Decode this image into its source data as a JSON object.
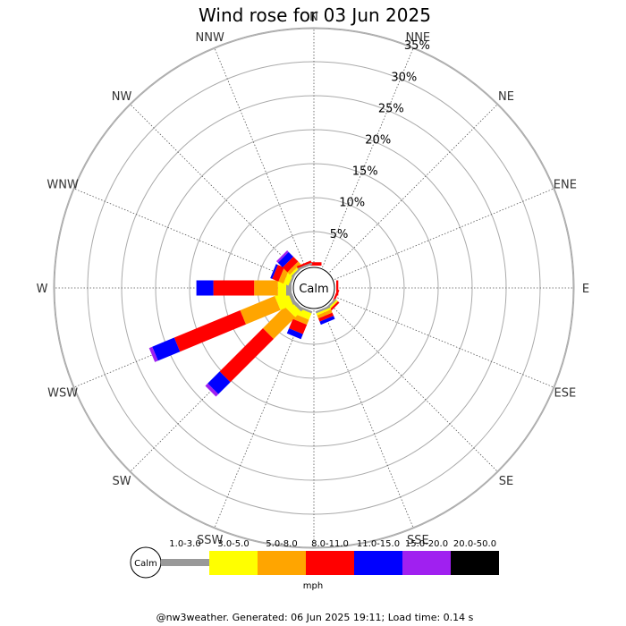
{
  "chart_data": {
    "type": "windrose",
    "title": "Wind rose for 03 Jun 2025",
    "calm_label": "Calm",
    "directions": [
      "N",
      "NNE",
      "NE",
      "ENE",
      "E",
      "ESE",
      "SE",
      "SSE",
      "S",
      "SSW",
      "SW",
      "WSW",
      "W",
      "WNW",
      "NW",
      "NNW"
    ],
    "radial_ticks": [
      "5%",
      "10%",
      "15%",
      "20%",
      "25%",
      "30%",
      "35%"
    ],
    "radial_max": 35,
    "unit": "mph",
    "speed_bins": [
      {
        "label": "1.0-3.0",
        "color": "#999999"
      },
      {
        "label": "3.0-5.0",
        "color": "#ffff00"
      },
      {
        "label": "5.0-8.0",
        "color": "#ffa500"
      },
      {
        "label": "8.0-11.0",
        "color": "#ff0000"
      },
      {
        "label": "11.0-15.0",
        "color": "#0000ff"
      },
      {
        "label": "15.0-20.0",
        "color": "#a020f0"
      },
      {
        "label": "20.0-50.0",
        "color": "#000000"
      }
    ],
    "sectors": {
      "N": [
        0.0,
        0.0,
        0.0,
        0.5,
        0.0,
        0.0,
        0.0
      ],
      "NNE": [
        0.0,
        0.0,
        0.0,
        0.0,
        0.0,
        0.0,
        0.0
      ],
      "NE": [
        0.0,
        0.0,
        0.0,
        0.0,
        0.0,
        0.0,
        0.0
      ],
      "ENE": [
        0.0,
        0.0,
        0.0,
        0.0,
        0.0,
        0.0,
        0.0
      ],
      "E": [
        0.0,
        0.0,
        0.0,
        0.3,
        0.0,
        0.0,
        0.0
      ],
      "ESE": [
        0.0,
        0.0,
        0.0,
        0.3,
        0.0,
        0.0,
        0.0
      ],
      "SE": [
        0.3,
        0.3,
        0.0,
        0.3,
        0.0,
        0.0,
        0.0
      ],
      "SSE": [
        0.3,
        0.3,
        0.5,
        0.5,
        0.5,
        0.0,
        0.0
      ],
      "S": [
        0.0,
        0.0,
        0.0,
        0.0,
        0.0,
        0.0,
        0.0
      ],
      "SSW": [
        0.3,
        1.0,
        0.8,
        1.5,
        0.8,
        0.0,
        0.0
      ],
      "SW": [
        0.5,
        1.2,
        4.5,
        9.0,
        2.5,
        0.5,
        0.0
      ],
      "WSW": [
        0.5,
        2.0,
        5.5,
        10.5,
        3.5,
        0.5,
        0.0
      ],
      "W": [
        0.8,
        1.2,
        3.5,
        6.0,
        2.5,
        0.0,
        0.0
      ],
      "WNW": [
        0.3,
        0.8,
        0.8,
        1.0,
        0.3,
        0.0,
        0.0
      ],
      "NW": [
        0.3,
        0.3,
        0.5,
        1.0,
        1.0,
        0.3,
        0.0
      ],
      "NNW": [
        0.3,
        0.0,
        0.0,
        0.3,
        0.0,
        0.0,
        0.0
      ]
    }
  },
  "footer": "@nw3weather. Generated: 06 Jun 2025 19:11; Load time: 0.14 s"
}
